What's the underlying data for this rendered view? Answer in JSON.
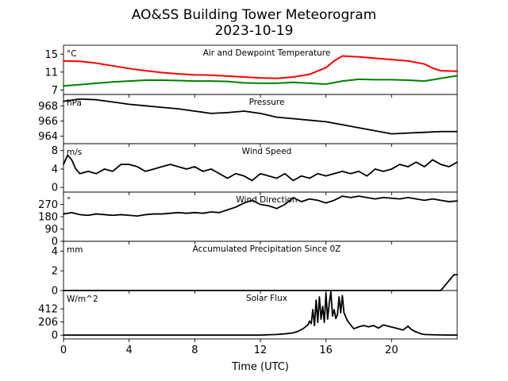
{
  "figure": {
    "title_line1": "AO&SS Building Tower Meteorogram",
    "title_line2": "2023-10-19",
    "xlabel": "Time (UTC)"
  },
  "chart_data": [
    {
      "type": "line",
      "title": "Air and Dewpoint Temperature",
      "unit": "°C",
      "xlim": [
        0,
        24
      ],
      "ylim": [
        6,
        17
      ],
      "yticks": [
        7,
        11,
        15
      ],
      "series": [
        {
          "color": "#ff0000",
          "x": [
            0,
            1,
            2,
            3,
            4,
            5,
            6,
            7,
            8,
            9,
            10,
            11,
            12,
            13,
            14,
            15,
            16,
            16.5,
            17,
            17.5,
            18,
            19,
            20,
            21,
            22,
            22.5,
            23,
            24
          ],
          "y": [
            13.5,
            13.4,
            13.0,
            12.4,
            11.8,
            11.3,
            10.9,
            10.6,
            10.4,
            10.3,
            10.1,
            9.9,
            9.7,
            9.6,
            9.9,
            10.5,
            12.0,
            13.5,
            14.6,
            14.5,
            14.4,
            14.1,
            13.8,
            13.5,
            12.8,
            11.9,
            11.3,
            11.2
          ]
        },
        {
          "color": "#008000",
          "x": [
            0,
            1,
            2,
            3,
            4,
            5,
            6,
            7,
            8,
            9,
            10,
            11,
            12,
            13,
            14,
            15,
            16,
            17,
            18,
            19,
            20,
            21,
            22,
            23,
            24
          ],
          "y": [
            7.9,
            8.2,
            8.5,
            8.8,
            9.0,
            9.2,
            9.2,
            9.1,
            9.0,
            9.0,
            8.9,
            8.6,
            8.5,
            8.5,
            8.7,
            8.5,
            8.3,
            9.0,
            9.4,
            9.3,
            9.3,
            9.2,
            9.0,
            9.6,
            10.2
          ]
        }
      ]
    },
    {
      "type": "line",
      "title": "Pressure",
      "unit": "hPa",
      "xlim": [
        0,
        24
      ],
      "ylim": [
        963,
        969.5
      ],
      "yticks": [
        964,
        966,
        968
      ],
      "series": [
        {
          "color": "#000000",
          "x": [
            0,
            1,
            2,
            3,
            4,
            5,
            6,
            7,
            8,
            9,
            10,
            11,
            12,
            13,
            14,
            15,
            16,
            17,
            18,
            19,
            20,
            21,
            22,
            23,
            24
          ],
          "y": [
            968.6,
            968.9,
            968.8,
            968.5,
            968.2,
            968.0,
            967.8,
            967.6,
            967.3,
            967.0,
            967.1,
            967.3,
            967.0,
            966.5,
            966.3,
            966.1,
            965.9,
            965.5,
            965.1,
            964.7,
            964.3,
            964.4,
            964.5,
            964.6,
            964.6
          ]
        }
      ]
    },
    {
      "type": "line",
      "title": "Wind Speed",
      "unit": "m/s",
      "xlim": [
        0,
        24
      ],
      "ylim": [
        -1,
        9.5
      ],
      "yticks": [
        0,
        4,
        8
      ],
      "series": [
        {
          "color": "#000000",
          "x": [
            0,
            0.25,
            0.5,
            0.75,
            1,
            1.5,
            2,
            2.5,
            3,
            3.5,
            4,
            4.5,
            5,
            5.5,
            6,
            6.5,
            7,
            7.5,
            8,
            8.5,
            9,
            9.5,
            10,
            10.5,
            11,
            11.5,
            12,
            12.5,
            13,
            13.5,
            14,
            14.5,
            15,
            15.5,
            16,
            16.5,
            17,
            17.5,
            18,
            18.5,
            19,
            19.5,
            20,
            20.5,
            21,
            21.5,
            22,
            22.5,
            23,
            23.5,
            24
          ],
          "y": [
            5,
            7,
            6,
            4,
            3,
            3.5,
            3,
            4,
            3.5,
            5,
            5,
            4.5,
            3.5,
            4,
            4.5,
            5,
            4.5,
            4,
            4.5,
            3.5,
            4,
            3,
            2,
            3,
            2.5,
            1.5,
            3,
            2.5,
            2,
            3,
            1.5,
            2.5,
            2,
            3,
            2.5,
            3,
            3.5,
            3,
            3.5,
            2.5,
            4,
            3.5,
            4,
            5,
            4.5,
            5.5,
            4.5,
            6,
            5,
            4.5,
            5.5
          ]
        }
      ]
    },
    {
      "type": "line",
      "title": "Wind Direction",
      "unit": "°",
      "xlim": [
        0,
        24
      ],
      "ylim": [
        0,
        360
      ],
      "yticks": [
        0,
        90,
        180,
        270
      ],
      "series": [
        {
          "color": "#000000",
          "x": [
            0,
            0.5,
            1,
            1.5,
            2,
            2.5,
            3,
            3.5,
            4,
            4.5,
            5,
            5.5,
            6,
            6.5,
            7,
            7.5,
            8,
            8.5,
            9,
            9.5,
            10,
            10.5,
            11,
            11.5,
            12,
            12.5,
            13,
            13.5,
            14,
            14.5,
            15,
            15.5,
            16,
            16.5,
            17,
            17.5,
            18,
            18.5,
            19,
            19.5,
            20,
            20.5,
            21,
            21.5,
            22,
            22.5,
            23,
            23.5,
            24
          ],
          "y": [
            200,
            210,
            195,
            190,
            200,
            195,
            190,
            195,
            190,
            185,
            195,
            200,
            200,
            205,
            210,
            205,
            210,
            205,
            215,
            210,
            230,
            250,
            280,
            300,
            270,
            260,
            240,
            270,
            320,
            290,
            310,
            300,
            280,
            300,
            330,
            320,
            330,
            320,
            310,
            320,
            315,
            310,
            320,
            310,
            300,
            310,
            300,
            290,
            295
          ]
        }
      ]
    },
    {
      "type": "line",
      "title": "Accumulated Precipitation Since 0Z",
      "unit": "mm",
      "xlim": [
        0,
        24
      ],
      "ylim": [
        0,
        5
      ],
      "yticks": [
        0,
        2,
        4
      ],
      "series": [
        {
          "color": "#000000",
          "x": [
            0,
            22,
            23,
            23.2,
            23.4,
            23.6,
            23.8,
            24
          ],
          "y": [
            0,
            0,
            0,
            0.4,
            0.8,
            1.2,
            1.6,
            1.6
          ]
        }
      ]
    },
    {
      "type": "line",
      "title": "Solar Flux",
      "unit": "W/m^2",
      "xlim": [
        0,
        24
      ],
      "ylim": [
        -60,
        700
      ],
      "yticks": [
        0,
        206,
        412
      ],
      "series": [
        {
          "color": "#000000",
          "x": [
            0,
            12,
            12.5,
            13,
            13.5,
            14,
            14.3,
            14.6,
            14.9,
            15,
            15.1,
            15.2,
            15.3,
            15.4,
            15.5,
            15.6,
            15.7,
            15.8,
            15.9,
            16,
            16.1,
            16.2,
            16.3,
            16.4,
            16.5,
            16.6,
            16.7,
            16.8,
            16.9,
            17,
            17.1,
            17.3,
            17.5,
            17.7,
            18,
            18.3,
            18.6,
            18.9,
            19.2,
            19.5,
            19.8,
            20.1,
            20.4,
            20.7,
            21,
            21.2,
            21.4,
            21.6,
            21.8,
            22,
            22.5,
            23,
            24
          ],
          "y": [
            0,
            0,
            5,
            10,
            20,
            35,
            60,
            100,
            160,
            220,
            180,
            400,
            150,
            550,
            200,
            600,
            250,
            450,
            200,
            660,
            250,
            500,
            680,
            300,
            400,
            260,
            320,
            600,
            350,
            620,
            350,
            230,
            160,
            100,
            130,
            150,
            130,
            150,
            110,
            160,
            140,
            120,
            100,
            80,
            140,
            90,
            60,
            40,
            20,
            10,
            5,
            2,
            0
          ]
        }
      ]
    }
  ]
}
